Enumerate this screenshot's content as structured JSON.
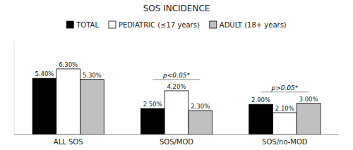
{
  "chart_data": {
    "type": "bar",
    "title": "SOS INCIDENCE",
    "categories": [
      "ALL SOS",
      "SOS/MOD",
      "SOS/no-MOD"
    ],
    "series": [
      {
        "name": "TOTAL",
        "color": "#000000",
        "values": [
          5.4,
          2.5,
          2.9
        ],
        "value_labels": [
          "5.40%",
          "2.50%",
          "2.90%"
        ]
      },
      {
        "name": "PEDIATRIC (≤17 years)",
        "color": "#ffffff",
        "values": [
          6.3,
          4.2,
          2.1
        ],
        "value_labels": [
          "6.30%",
          "4.20%",
          "2.10%"
        ]
      },
      {
        "name": "ADULT (18+ years)",
        "color": "#c0c0c0",
        "values": [
          5.3,
          2.3,
          3.0
        ],
        "value_labels": [
          "5.30%",
          "2.30%",
          "3.00%"
        ]
      }
    ],
    "ylim": [
      0,
      9.0
    ],
    "grid": false,
    "legend": "top",
    "data_labels": true,
    "tick_labels": "x",
    "annotations": [
      {
        "text": "p<0.05*",
        "category": "SOS/MOD"
      },
      {
        "text": "p>0.05*",
        "category": "SOS/no-MOD"
      }
    ]
  }
}
